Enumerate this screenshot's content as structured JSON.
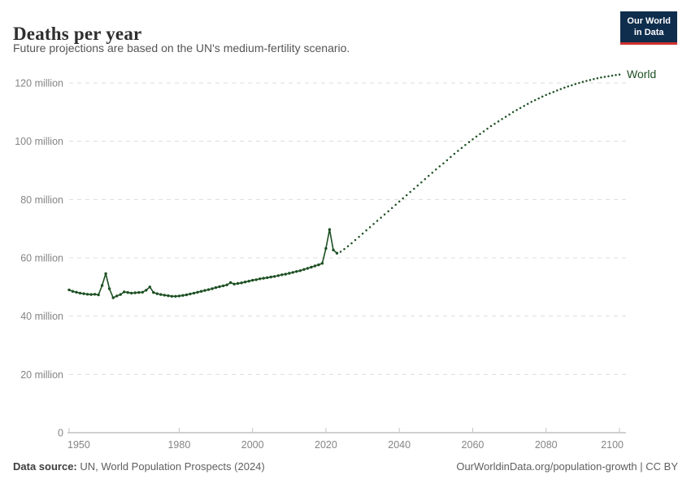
{
  "header": {
    "title": "Deaths per year",
    "subtitle": "Future projections are based on the UN's medium-fertility scenario.",
    "logo": {
      "line1": "Our World",
      "line2": "in Data",
      "bg_color": "#0F2E4D",
      "accent_color": "#CF3130"
    }
  },
  "footer": {
    "source_label": "Data source:",
    "source_text": " UN, World Population Prospects (2024)",
    "attribution": "OurWorldinData.org/population-growth | CC BY"
  },
  "chart_data": {
    "type": "line",
    "title": "Deaths per year",
    "subtitle": "Future projections are based on the UN's medium-fertility scenario.",
    "entity_label": "World",
    "unit": "deaths per year (millions)",
    "line_color": "#1D5023",
    "grid_color": "#DCDCDC",
    "axis_color": "#A3A3A3",
    "tick_color": "#C4C4C4",
    "tick_label_color": "#858585",
    "grid": true,
    "legend_position": "end-of-line",
    "xlim": [
      1950,
      2100
    ],
    "ylim": [
      0,
      120
    ],
    "x_ticks": [
      1950,
      1980,
      2000,
      2020,
      2040,
      2060,
      2080,
      2100
    ],
    "y_ticks": [
      {
        "value": 0,
        "label": "0"
      },
      {
        "value": 20,
        "label": "20 million"
      },
      {
        "value": 40,
        "label": "40 million"
      },
      {
        "value": 60,
        "label": "60 million"
      },
      {
        "value": 80,
        "label": "80 million"
      },
      {
        "value": 100,
        "label": "100 million"
      },
      {
        "value": 120,
        "label": "120 million"
      }
    ],
    "series": [
      {
        "name": "estimates",
        "style": "solid_with_markers",
        "start_year": 1950,
        "values": [
          49.0,
          48.5,
          48.2,
          47.9,
          47.7,
          47.5,
          47.4,
          47.5,
          47.3,
          50.5,
          54.6,
          49.4,
          46.3,
          46.9,
          47.4,
          48.3,
          48.1,
          47.9,
          48.0,
          48.1,
          48.2,
          48.9,
          50.0,
          48.1,
          47.7,
          47.4,
          47.2,
          47.0,
          46.8,
          46.8,
          46.9,
          47.1,
          47.3,
          47.6,
          47.9,
          48.2,
          48.5,
          48.8,
          49.1,
          49.4,
          49.8,
          50.1,
          50.4,
          50.7,
          51.5,
          51.0,
          51.2,
          51.4,
          51.7,
          52.0,
          52.3,
          52.5,
          52.8,
          53.0,
          53.2,
          53.4,
          53.6,
          53.9,
          54.2,
          54.4,
          54.7,
          55.0,
          55.3,
          55.6,
          56.0,
          56.4,
          56.8,
          57.2,
          57.6,
          58.1,
          63.2,
          69.7,
          62.7,
          61.6
        ]
      },
      {
        "name": "projection",
        "style": "dotted",
        "start_year": 2024,
        "values": [
          62.1,
          63.0,
          64.0,
          65.0,
          66.1,
          67.2,
          68.3,
          69.4,
          70.5,
          71.6,
          72.7,
          73.8,
          74.9,
          76.0,
          77.1,
          78.2,
          79.3,
          80.4,
          81.5,
          82.6,
          83.7,
          84.8,
          85.9,
          87.0,
          88.1,
          89.2,
          90.3,
          91.4,
          92.4,
          93.5,
          94.6,
          95.7,
          96.7,
          97.7,
          98.7,
          99.7,
          100.7,
          101.6,
          102.5,
          103.4,
          104.3,
          105.2,
          106.0,
          106.8,
          107.6,
          108.4,
          109.2,
          110.0,
          110.7,
          111.4,
          112.1,
          112.8,
          113.5,
          114.1,
          114.7,
          115.3,
          115.9,
          116.4,
          116.9,
          117.4,
          117.9,
          118.4,
          118.8,
          119.2,
          119.6,
          120.0,
          120.4,
          120.7,
          121.0,
          121.3,
          121.6,
          121.9,
          122.1,
          122.3,
          122.5,
          122.7,
          122.9
        ]
      }
    ]
  }
}
